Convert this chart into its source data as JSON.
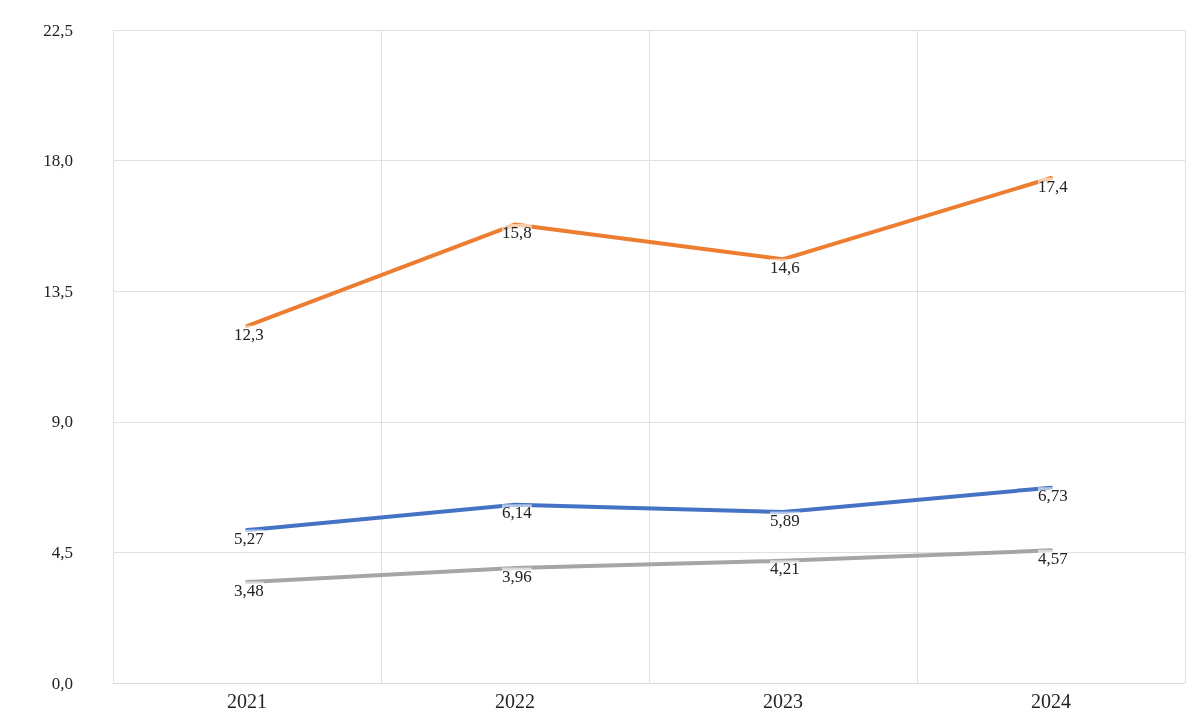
{
  "chart_data": {
    "type": "line",
    "categories": [
      "2021",
      "2022",
      "2023",
      "2024"
    ],
    "series": [
      {
        "color": "#ed7d31",
        "values": [
          12.3,
          15.8,
          14.6,
          17.4
        ],
        "value_labels": [
          "12,3",
          "15,8",
          "14,6",
          "17,4"
        ]
      },
      {
        "color": "#4472c4",
        "values": [
          5.27,
          6.14,
          5.89,
          6.73
        ],
        "value_labels": [
          "5,27",
          "6,14",
          "5,89",
          "6,73"
        ]
      },
      {
        "color": "#a5a5a5",
        "values": [
          3.48,
          3.96,
          4.21,
          4.57
        ],
        "value_labels": [
          "3,48",
          "3,96",
          "4,21",
          "4,57"
        ]
      }
    ],
    "ylim": [
      0,
      22.5
    ],
    "yticks": [
      {
        "value": 0,
        "label": "0,0"
      },
      {
        "value": 4.5,
        "label": "4,5"
      },
      {
        "value": 9,
        "label": "9,0"
      },
      {
        "value": 13.5,
        "label": "13,5"
      },
      {
        "value": 18,
        "label": "18,0"
      },
      {
        "value": 22.5,
        "label": "22,5"
      }
    ],
    "grid": true,
    "marker": "none",
    "line_style": "solid"
  }
}
